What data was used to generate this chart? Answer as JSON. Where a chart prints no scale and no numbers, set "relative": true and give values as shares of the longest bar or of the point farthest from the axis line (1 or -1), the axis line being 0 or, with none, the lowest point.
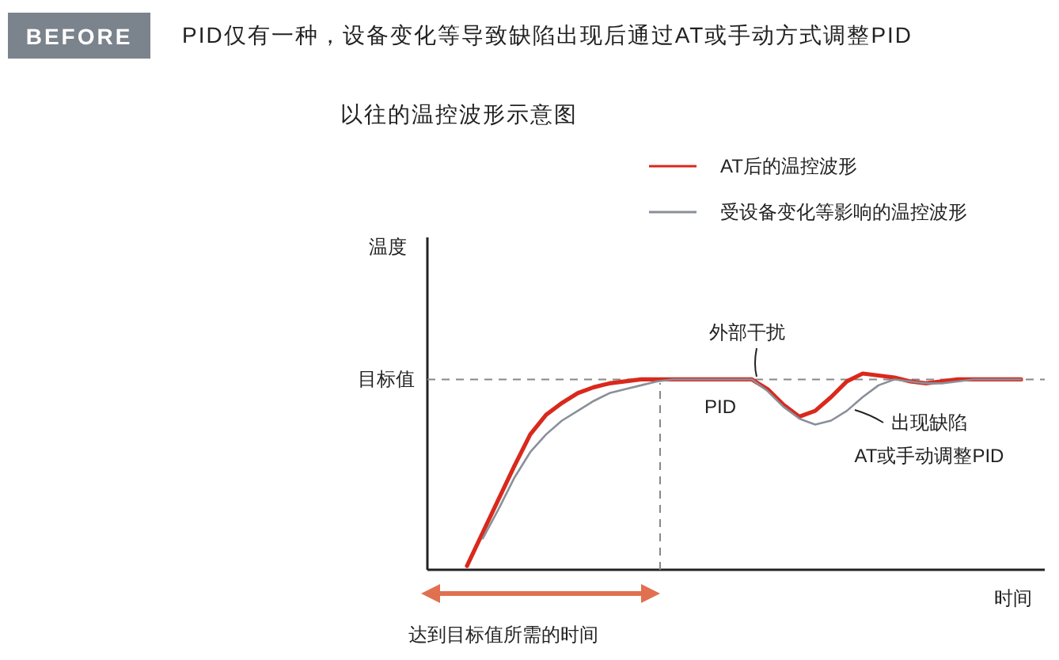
{
  "chart_data": {
    "type": "line",
    "relative": true,
    "title": "以往的温控波形示意图",
    "subtitle": "PID仅有一种，设备变化等导致缺陷出现后通过AT或手动方式调整PID",
    "xlabel": "时间",
    "categories": [
      null,
      null,
      null,
      null,
      null,
      null,
      null,
      null,
      null,
      null,
      null,
      null,
      null,
      null,
      null,
      null,
      null,
      null,
      null,
      null,
      null,
      null,
      null,
      null,
      null,
      null,
      null,
      null,
      null,
      null,
      null,
      null,
      null,
      null,
      null,
      null
    ],
    "series": [
      {
        "name": "AT后的温控波形",
        "color": "#d9291c",
        "values": [
          0.02,
          0.19,
          0.36,
          0.53,
          0.69,
          0.79,
          0.85,
          0.9,
          0.93,
          0.95,
          0.96,
          0.97,
          0.97,
          0.97,
          0.97,
          0.97,
          0.97,
          0.97,
          0.97,
          0.92,
          0.84,
          0.78,
          0.81,
          0.88,
          0.96,
          1,
          0.99,
          0.98,
          0.96,
          0.95,
          0.96,
          0.97,
          0.97,
          0.97,
          0.97,
          0.97
        ]
      },
      {
        "name": "受设备变化等影响的温控波形",
        "color": "#8a9099",
        "values": [
          null,
          0.16,
          0.31,
          0.47,
          0.6,
          0.69,
          0.76,
          0.81,
          0.86,
          0.9,
          0.92,
          0.94,
          0.96,
          0.97,
          0.97,
          0.97,
          0.97,
          0.97,
          0.97,
          0.91,
          0.83,
          0.77,
          0.74,
          0.76,
          0.81,
          0.88,
          0.94,
          0.97,
          0.96,
          0.95,
          0.95,
          0.96,
          0.97,
          0.97,
          0.97,
          0.97
        ]
      }
    ],
    "ref_lines": [
      {
        "axis": "y",
        "value": 0.97,
        "label": "目标值",
        "color": "#888888",
        "line_style": "dashed"
      }
    ],
    "annotations": [
      "BEFORE",
      "外部干扰",
      "PID",
      "出现缺陷",
      "AT或手动调整PID",
      "达到目标值所需的时间",
      "温度"
    ],
    "legend": "top right",
    "line_style": "solid",
    "marker": "none"
  }
}
